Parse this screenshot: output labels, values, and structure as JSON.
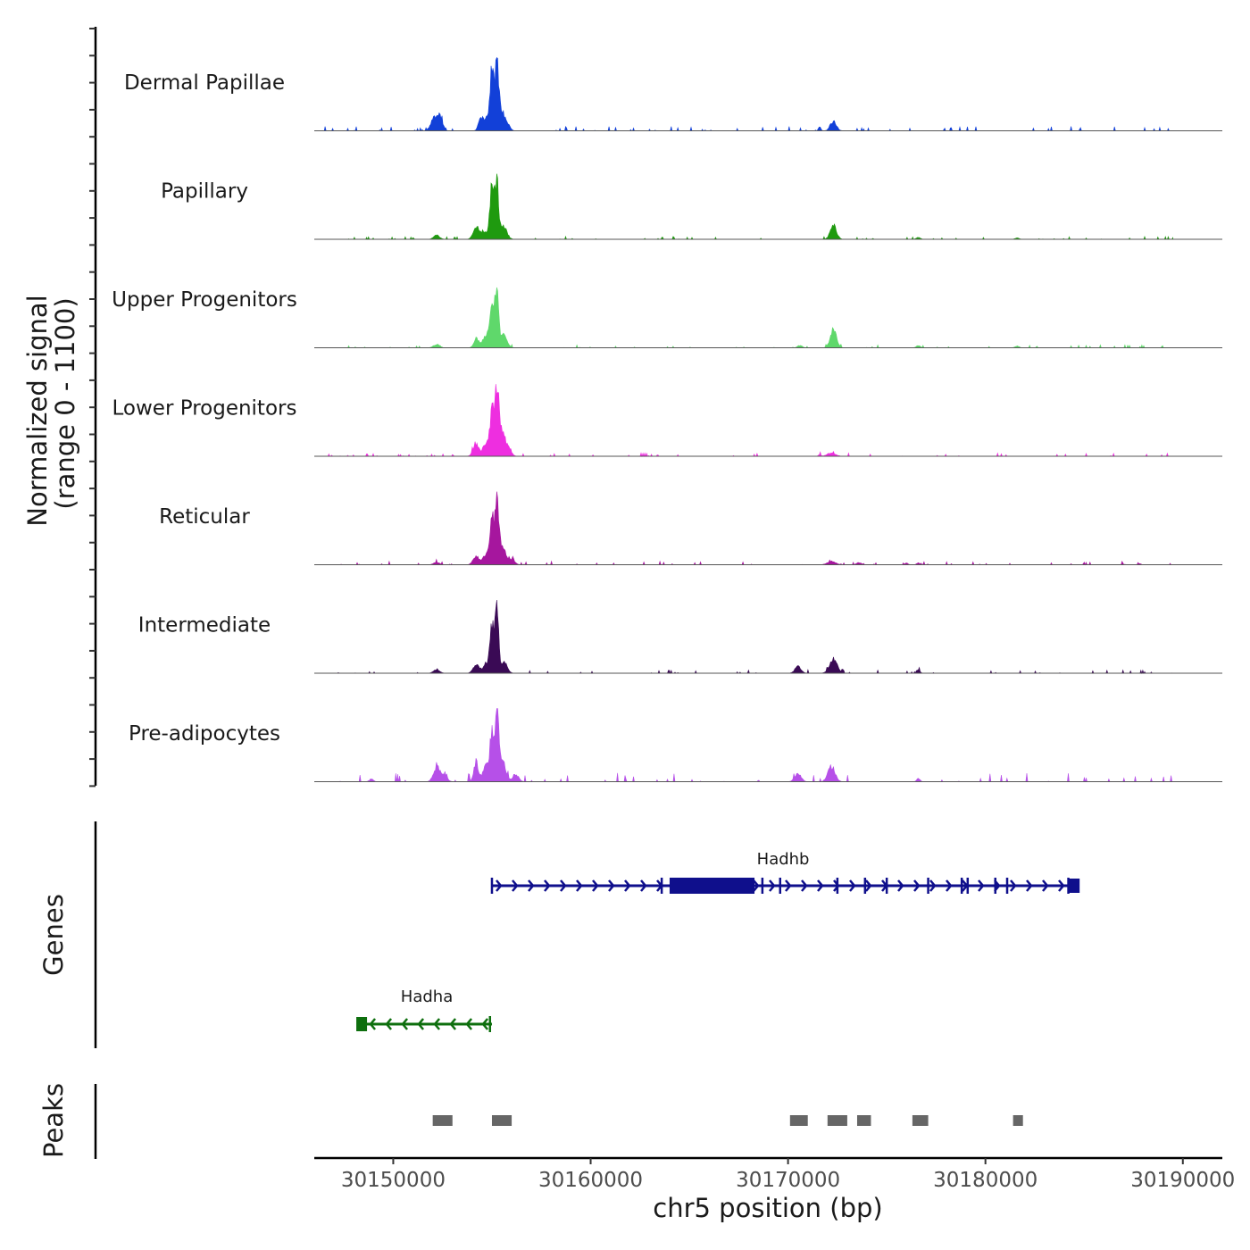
{
  "chart_data": {
    "type": "area",
    "title": "",
    "chromosome": "chr5",
    "xlabel": "chr5 position (bp)",
    "ylabel_line1": "Normalized signal",
    "ylabel_line2": "(range 0 - 1100)",
    "y_range": [
      0,
      1100
    ],
    "xlim": [
      30146000,
      30192000
    ],
    "x_ticks": [
      30150000,
      30160000,
      30170000,
      30180000,
      30190000
    ],
    "x_tick_labels": [
      "30150000",
      "30160000",
      "30170000",
      "30180000",
      "30190000"
    ],
    "track_peaks": [
      {
        "name": "Dermal Papillae",
        "color": "#1240d8",
        "base_noise": 0.015,
        "peaks": [
          [
            30152100,
            180,
            240
          ],
          [
            30152400,
            120,
            200
          ],
          [
            30154400,
            90,
            180
          ],
          [
            30154700,
            200,
            220
          ],
          [
            30155000,
            100,
            1000
          ],
          [
            30155250,
            90,
            1100
          ],
          [
            30155500,
            150,
            330
          ],
          [
            30155800,
            120,
            110
          ],
          [
            30171600,
            60,
            70
          ],
          [
            30172300,
            150,
            170
          ]
        ]
      },
      {
        "name": "Papillary",
        "color": "#1f9a0f",
        "base_noise": 0.01,
        "peaks": [
          [
            30152200,
            150,
            70
          ],
          [
            30154200,
            150,
            200
          ],
          [
            30154600,
            180,
            120
          ],
          [
            30155000,
            100,
            920
          ],
          [
            30155250,
            90,
            1000
          ],
          [
            30155600,
            160,
            230
          ],
          [
            30172300,
            160,
            230
          ],
          [
            30176600,
            100,
            30
          ],
          [
            30181600,
            100,
            25
          ]
        ]
      },
      {
        "name": "Upper Progenitors",
        "color": "#5fd86b",
        "base_noise": 0.01,
        "peaks": [
          [
            30152200,
            150,
            60
          ],
          [
            30154200,
            120,
            160
          ],
          [
            30154700,
            180,
            200
          ],
          [
            30155000,
            110,
            750
          ],
          [
            30155250,
            90,
            1100
          ],
          [
            30155600,
            160,
            230
          ],
          [
            30170600,
            120,
            40
          ],
          [
            30172300,
            160,
            320
          ],
          [
            30176600,
            100,
            40
          ],
          [
            30181600,
            100,
            30
          ]
        ]
      },
      {
        "name": "Lower Progenitors",
        "color": "#ee2ee0",
        "base_noise": 0.012,
        "peaks": [
          [
            30154200,
            150,
            220
          ],
          [
            30154700,
            150,
            220
          ],
          [
            30155000,
            100,
            760
          ],
          [
            30155250,
            100,
            1100
          ],
          [
            30155500,
            180,
            450
          ],
          [
            30155900,
            120,
            100
          ],
          [
            30171600,
            60,
            30
          ],
          [
            30172200,
            200,
            60
          ]
        ]
      },
      {
        "name": "Reticular",
        "color": "#a6169e",
        "base_noise": 0.012,
        "peaks": [
          [
            30152200,
            150,
            40
          ],
          [
            30154200,
            150,
            150
          ],
          [
            30154700,
            160,
            170
          ],
          [
            30155000,
            100,
            820
          ],
          [
            30155250,
            90,
            1000
          ],
          [
            30155500,
            180,
            330
          ],
          [
            30156000,
            150,
            90
          ],
          [
            30172200,
            200,
            60
          ],
          [
            30173600,
            120,
            40
          ],
          [
            30176000,
            80,
            30
          ],
          [
            30176600,
            80,
            35
          ],
          [
            30187800,
            80,
            20
          ]
        ]
      },
      {
        "name": "Intermediate",
        "color": "#3a0a55",
        "base_noise": 0.012,
        "peaks": [
          [
            30152200,
            150,
            70
          ],
          [
            30154200,
            150,
            150
          ],
          [
            30154700,
            160,
            150
          ],
          [
            30155000,
            100,
            820
          ],
          [
            30155250,
            90,
            1100
          ],
          [
            30155600,
            160,
            200
          ],
          [
            30170500,
            150,
            120
          ],
          [
            30172300,
            200,
            250
          ],
          [
            30176600,
            80,
            60
          ]
        ]
      },
      {
        "name": "Pre-adipocytes",
        "color": "#b650e8",
        "base_noise": 0.03,
        "peaks": [
          [
            30148900,
            100,
            50
          ],
          [
            30152200,
            160,
            260
          ],
          [
            30152600,
            140,
            120
          ],
          [
            30154200,
            120,
            340
          ],
          [
            30154700,
            150,
            280
          ],
          [
            30155000,
            100,
            870
          ],
          [
            30155250,
            90,
            1100
          ],
          [
            30155500,
            180,
            380
          ],
          [
            30156200,
            150,
            120
          ],
          [
            30170500,
            160,
            140
          ],
          [
            30172200,
            180,
            260
          ],
          [
            30176600,
            80,
            60
          ]
        ]
      }
    ],
    "gene_track_label": "Genes",
    "genes": [
      {
        "name": "Hadhb",
        "strand": "+",
        "start": 30155000,
        "end": 30184500,
        "color": "#0f0f8c",
        "cds": [
          30164000,
          30168300
        ],
        "exons": [
          30155000,
          30163600,
          30168700,
          30169600,
          30172500,
          30173900,
          30175000,
          30177100,
          30178800,
          30179100,
          30180500,
          30181100,
          30184200
        ]
      },
      {
        "name": "Hadha",
        "strand": "-",
        "start": 30148400,
        "end": 30155000,
        "color": "#0e6f0e",
        "cds": [],
        "exons": [
          30154900
        ]
      }
    ],
    "peak_track_label": "Peaks",
    "called_peaks": [
      [
        30152000,
        30153000
      ],
      [
        30155000,
        30156000
      ],
      [
        30170100,
        30171000
      ],
      [
        30172000,
        30173000
      ],
      [
        30173500,
        30174200
      ],
      [
        30176300,
        30177100
      ],
      [
        30181400,
        30181900
      ]
    ]
  }
}
